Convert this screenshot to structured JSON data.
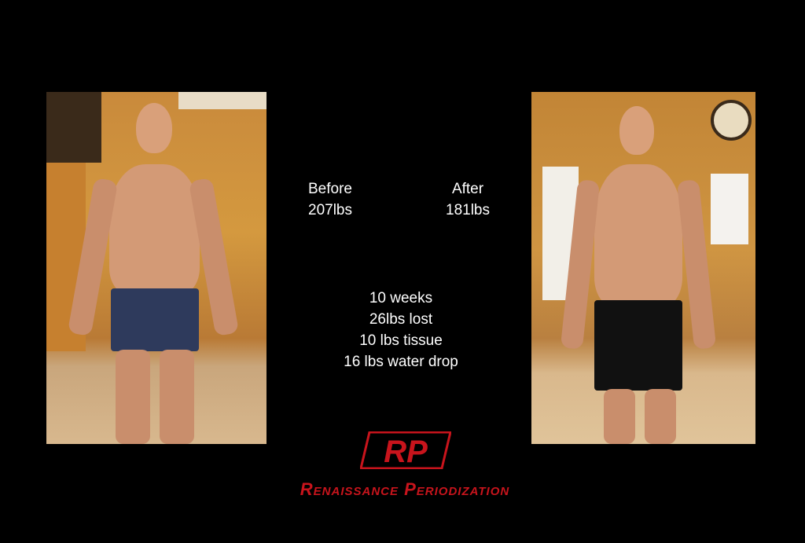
{
  "before": {
    "label": "Before",
    "weight": "207lbs"
  },
  "after": {
    "label": "After",
    "weight": "181lbs"
  },
  "summary": [
    "10 weeks",
    "26lbs lost",
    "10 lbs tissue",
    "16 lbs water drop"
  ],
  "logo": {
    "mark": "RP",
    "name": "Renaissance Periodization",
    "color": "#c8141c"
  },
  "colors": {
    "background": "#000000",
    "text": "#ffffff"
  }
}
